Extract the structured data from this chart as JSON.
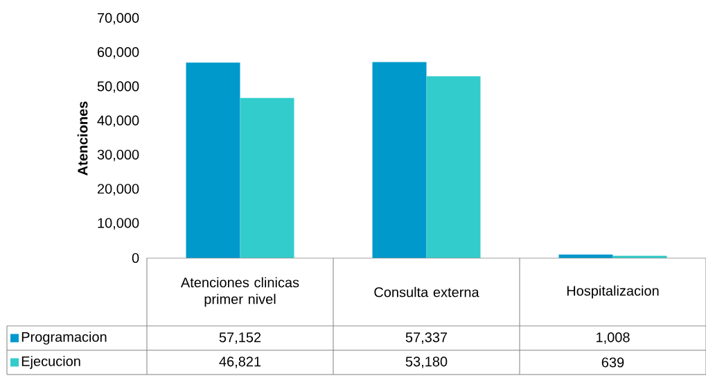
{
  "chart_data": {
    "type": "bar",
    "ylabel": "Atenciones",
    "categories": [
      "Atenciones clinicas primer nivel",
      "Consulta externa",
      "Hospitalizacion"
    ],
    "series": [
      {
        "name": "Programacion",
        "color": "#0099cc",
        "values": [
          57152,
          57337,
          1008
        ],
        "value_labels": [
          "57,152",
          "57,337",
          "1,008"
        ]
      },
      {
        "name": "Ejecucion",
        "color": "#33cccc",
        "values": [
          46821,
          53180,
          639
        ],
        "value_labels": [
          "46,821",
          "53,180",
          "639"
        ]
      }
    ],
    "ylim": [
      0,
      70000
    ],
    "yticks": [
      0,
      {
        "value": 10000,
        "label": "10,000"
      },
      {
        "value": 20000,
        "label": "20,000"
      },
      {
        "value": 30000,
        "label": "30,000"
      },
      {
        "value": 40000,
        "label": "40,000"
      },
      {
        "value": 50000,
        "label": "50,000"
      },
      {
        "value": 60000,
        "label": "60,000"
      },
      {
        "value": 70000,
        "label": "70,000"
      }
    ],
    "legend": "bottom"
  }
}
